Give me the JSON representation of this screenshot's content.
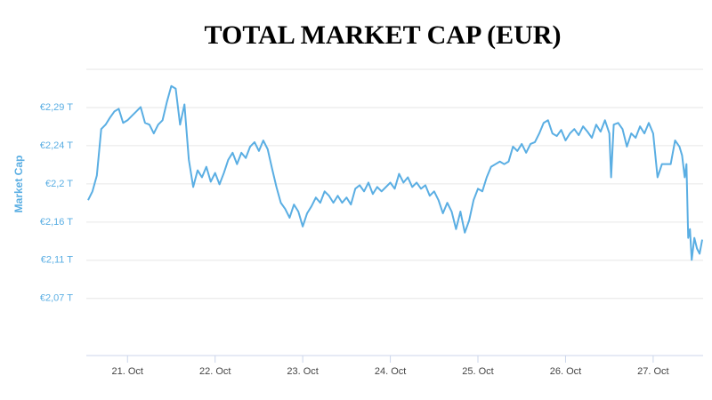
{
  "chart_data": {
    "type": "line",
    "title": "TOTAL MARKET CAP (EUR)",
    "y_label": "Market Cap",
    "color": "#5aaee3",
    "grid": true,
    "xlim": [
      20.53,
      27.57
    ],
    "ylim": [
      2.005,
      2.331
    ],
    "xticks": [
      {
        "value": 21,
        "label": "21. Oct"
      },
      {
        "value": 22,
        "label": "22. Oct"
      },
      {
        "value": 23,
        "label": "23. Oct"
      },
      {
        "value": 24,
        "label": "24. Oct"
      },
      {
        "value": 25,
        "label": "25. Oct"
      },
      {
        "value": 26,
        "label": "26. Oct"
      },
      {
        "value": 27,
        "label": "27. Oct"
      }
    ],
    "yticks": [
      {
        "value": 2.07,
        "label": "€2,07 T"
      },
      {
        "value": 2.1135,
        "label": "€2,11 T"
      },
      {
        "value": 2.157,
        "label": "€2,16 T"
      },
      {
        "value": 2.2005,
        "label": "€2,2 T"
      },
      {
        "value": 2.244,
        "label": "€2,24 T"
      },
      {
        "value": 2.2875,
        "label": "€2,29 T"
      }
    ],
    "x": [
      20.55,
      20.6,
      20.65,
      20.7,
      20.75,
      20.8,
      20.85,
      20.9,
      20.95,
      21.0,
      21.05,
      21.1,
      21.15,
      21.2,
      21.25,
      21.3,
      21.35,
      21.4,
      21.45,
      21.5,
      21.55,
      21.6,
      21.65,
      21.7,
      21.75,
      21.8,
      21.85,
      21.9,
      21.95,
      22.0,
      22.05,
      22.1,
      22.15,
      22.2,
      22.25,
      22.3,
      22.35,
      22.4,
      22.45,
      22.5,
      22.55,
      22.6,
      22.65,
      22.7,
      22.75,
      22.8,
      22.85,
      22.9,
      22.95,
      23.0,
      23.05,
      23.1,
      23.15,
      23.2,
      23.25,
      23.3,
      23.35,
      23.4,
      23.45,
      23.5,
      23.55,
      23.6,
      23.65,
      23.7,
      23.75,
      23.8,
      23.85,
      23.9,
      23.95,
      24.0,
      24.05,
      24.1,
      24.15,
      24.2,
      24.25,
      24.3,
      24.35,
      24.4,
      24.45,
      24.5,
      24.55,
      24.6,
      24.65,
      24.7,
      24.75,
      24.8,
      24.85,
      24.9,
      24.95,
      25.0,
      25.05,
      25.1,
      25.15,
      25.2,
      25.25,
      25.3,
      25.35,
      25.4,
      25.45,
      25.5,
      25.55,
      25.6,
      25.65,
      25.7,
      25.75,
      25.8,
      25.85,
      25.9,
      25.95,
      26.0,
      26.05,
      26.1,
      26.15,
      26.2,
      26.25,
      26.3,
      26.35,
      26.4,
      26.45,
      26.5,
      26.52,
      26.55,
      26.6,
      26.65,
      26.7,
      26.75,
      26.8,
      26.85,
      26.9,
      26.95,
      27.0,
      27.05,
      27.1,
      27.15,
      27.2,
      27.25,
      27.3,
      27.33,
      27.36,
      27.38,
      27.4,
      27.42,
      27.44,
      27.47,
      27.5,
      27.53,
      27.56
    ],
    "values": [
      2.182,
      2.192,
      2.21,
      2.263,
      2.268,
      2.276,
      2.283,
      2.286,
      2.27,
      2.273,
      2.278,
      2.283,
      2.288,
      2.27,
      2.268,
      2.258,
      2.268,
      2.273,
      2.294,
      2.312,
      2.309,
      2.268,
      2.291,
      2.228,
      2.197,
      2.216,
      2.208,
      2.22,
      2.203,
      2.213,
      2.2,
      2.213,
      2.228,
      2.236,
      2.223,
      2.236,
      2.23,
      2.243,
      2.248,
      2.238,
      2.25,
      2.24,
      2.218,
      2.197,
      2.179,
      2.172,
      2.162,
      2.177,
      2.169,
      2.152,
      2.167,
      2.175,
      2.185,
      2.179,
      2.192,
      2.187,
      2.179,
      2.187,
      2.179,
      2.185,
      2.177,
      2.195,
      2.199,
      2.192,
      2.202,
      2.189,
      2.197,
      2.192,
      2.197,
      2.202,
      2.195,
      2.212,
      2.202,
      2.208,
      2.197,
      2.202,
      2.195,
      2.199,
      2.187,
      2.192,
      2.182,
      2.167,
      2.179,
      2.169,
      2.149,
      2.169,
      2.145,
      2.159,
      2.182,
      2.195,
      2.192,
      2.208,
      2.22,
      2.223,
      2.226,
      2.223,
      2.226,
      2.243,
      2.238,
      2.246,
      2.236,
      2.246,
      2.248,
      2.258,
      2.27,
      2.273,
      2.258,
      2.255,
      2.262,
      2.25,
      2.258,
      2.263,
      2.256,
      2.266,
      2.26,
      2.253,
      2.268,
      2.26,
      2.273,
      2.258,
      2.208,
      2.268,
      2.27,
      2.263,
      2.243,
      2.258,
      2.253,
      2.266,
      2.258,
      2.27,
      2.258,
      2.208,
      2.223,
      2.223,
      2.223,
      2.25,
      2.243,
      2.233,
      2.208,
      2.223,
      2.139,
      2.149,
      2.114,
      2.139,
      2.127,
      2.121,
      2.137
    ]
  }
}
